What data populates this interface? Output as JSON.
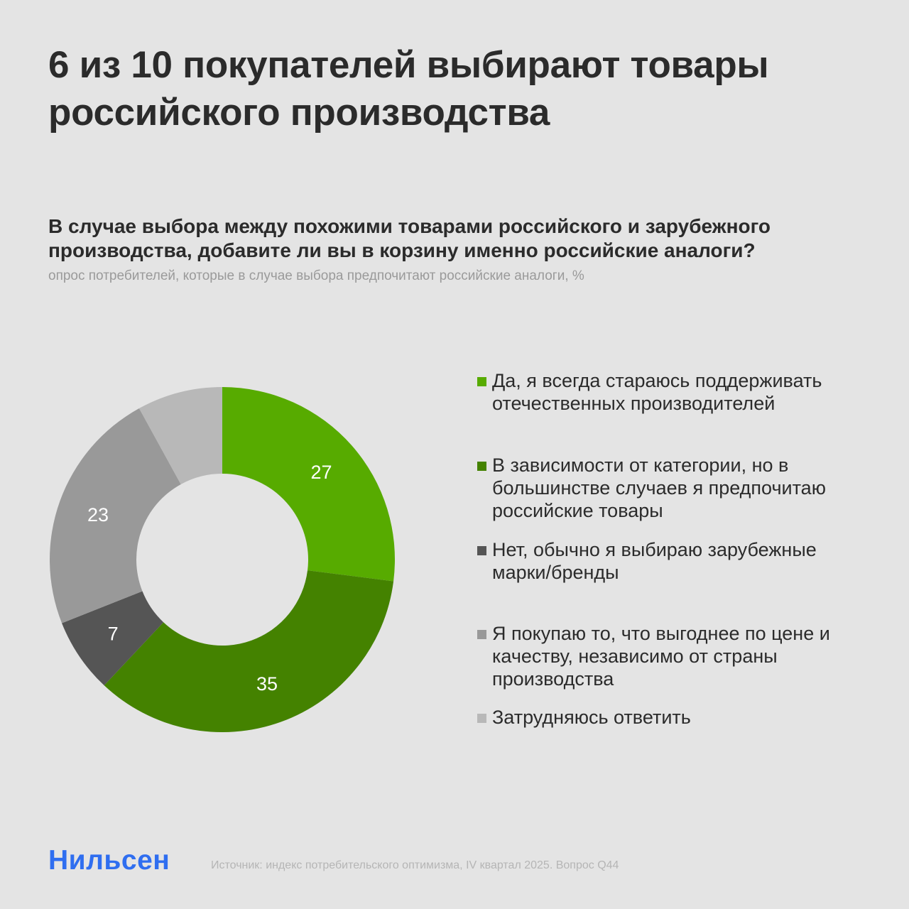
{
  "header": {
    "title": "6 из 10 покупателей выбирают товары российского производства",
    "question": "В случае выбора между похожими товарами российского и зарубежного производства, добавите ли вы в корзину именно российские аналоги?",
    "note": "опрос потребителей, которые в случае выбора предпочитают российские аналоги, %"
  },
  "legend": {
    "items": [
      {
        "label": "Да, я всегда стараюсь поддерживать отечественных производителей",
        "color": "#57ab00"
      },
      {
        "label": "В зависимости от категории, но в большинстве случаев я предпочитаю российские товары",
        "color": "#448200"
      },
      {
        "label": "Нет, обычно я выбираю зарубежные марки/бренды",
        "color": "#555555"
      },
      {
        "label": "Я покупаю то, что выгоднее по цене и качеству, независимо от страны производства",
        "color": "#999999"
      },
      {
        "label": "Затрудняюсь ответить",
        "color": "#b8b8b8"
      }
    ]
  },
  "chart_data": {
    "type": "pie",
    "subtype": "donut",
    "title": "В случае выбора между похожими товарами российского и зарубежного производства, добавите ли вы в корзину именно российские аналоги?",
    "subtitle": "опрос потребителей, которые в случае выбора предпочитают российские аналоги, %",
    "categories": [
      "Да, я всегда стараюсь поддерживать отечественных производителей",
      "В зависимости от категории, но в большинстве случаев я предпочитаю российские товары",
      "Нет, обычно я выбираю зарубежные марки/бренды",
      "Я покупаю то, что выгоднее по цене и качеству, независимо от страны производства",
      "Затрудняюсь ответить"
    ],
    "values": [
      27,
      35,
      7,
      23,
      8
    ],
    "labels": [
      "27",
      "35",
      "7",
      "23",
      ""
    ],
    "colors": [
      "#57ab00",
      "#448200",
      "#555555",
      "#999999",
      "#b8b8b8"
    ],
    "start_angle": "12 o'clock, clockwise",
    "legend_position": "right"
  },
  "footer": {
    "logo": "Нильсен",
    "source": "Источник: индекс потребительского оптимизма, IV квартал 2025. Вопрос Q44"
  }
}
